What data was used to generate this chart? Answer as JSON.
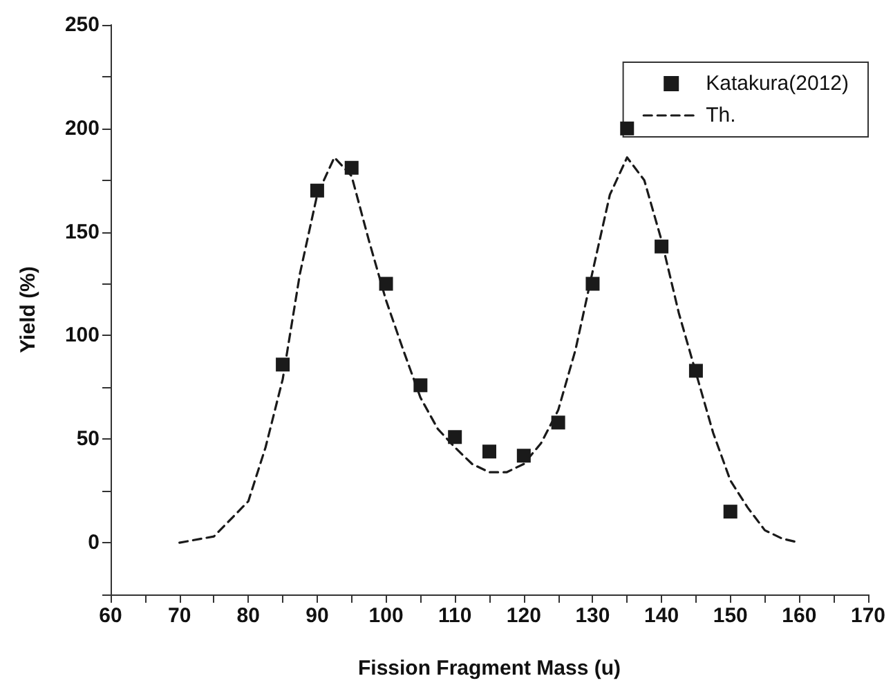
{
  "chart_data": {
    "type": "scatter",
    "xlabel": "Fission Fragment Mass (u)",
    "ylabel": "Yield (%)",
    "xlim": [
      60,
      170
    ],
    "ylim": [
      -25,
      250
    ],
    "xticks": [
      60,
      {
        "value": 65,
        "label": null
      },
      70,
      {
        "value": 75,
        "label": null
      },
      80,
      {
        "value": 85,
        "label": null
      },
      90,
      {
        "value": 95,
        "label": null
      },
      100,
      {
        "value": 105,
        "label": null
      },
      110,
      {
        "value": 115,
        "label": null
      },
      120,
      {
        "value": 125,
        "label": null
      },
      130,
      {
        "value": 135,
        "label": null
      },
      140,
      {
        "value": 145,
        "label": null
      },
      150,
      {
        "value": 155,
        "label": null
      },
      160,
      {
        "value": 165,
        "label": null
      },
      170
    ],
    "yticks": [
      {
        "value": -25,
        "label": null
      },
      0,
      {
        "value": 25,
        "label": null
      },
      50,
      {
        "value": 75,
        "label": null
      },
      100,
      {
        "value": 125,
        "label": null
      },
      150,
      {
        "value": 175,
        "label": null
      },
      200,
      {
        "value": 225,
        "label": null
      },
      250
    ],
    "grid": false,
    "legend": "top right",
    "series": [
      {
        "name": "Katakura(2012)",
        "marker": "square",
        "color": "#1a1a1a",
        "x": [
          85,
          90,
          95,
          100,
          105,
          110,
          115,
          120,
          125,
          130,
          135,
          140,
          145,
          150
        ],
        "values": [
          86,
          170,
          181,
          125,
          76,
          51,
          44,
          42,
          58,
          125,
          200,
          143,
          83,
          15
        ]
      },
      {
        "name": "Th.",
        "type": "line",
        "marker": "none",
        "line_style": "dashed",
        "color": "#1a1a1a",
        "x": [
          70,
          75,
          80,
          82.5,
          85,
          87.5,
          90,
          92.5,
          95,
          97.5,
          100,
          102.5,
          105,
          107.5,
          110,
          112.5,
          115,
          117.5,
          120,
          122.5,
          125,
          127.5,
          130,
          132.5,
          135,
          137.5,
          140,
          142.5,
          145,
          147.5,
          150,
          152.5,
          155,
          157.5,
          160
        ],
        "values": [
          0,
          3,
          20,
          46,
          79,
          130,
          168,
          186,
          177,
          146,
          117,
          93,
          70,
          55,
          46,
          38,
          34,
          34,
          38,
          48,
          64,
          93,
          131,
          168,
          186,
          175,
          146,
          111,
          82,
          53,
          30,
          17,
          6,
          2,
          0
        ]
      }
    ]
  }
}
